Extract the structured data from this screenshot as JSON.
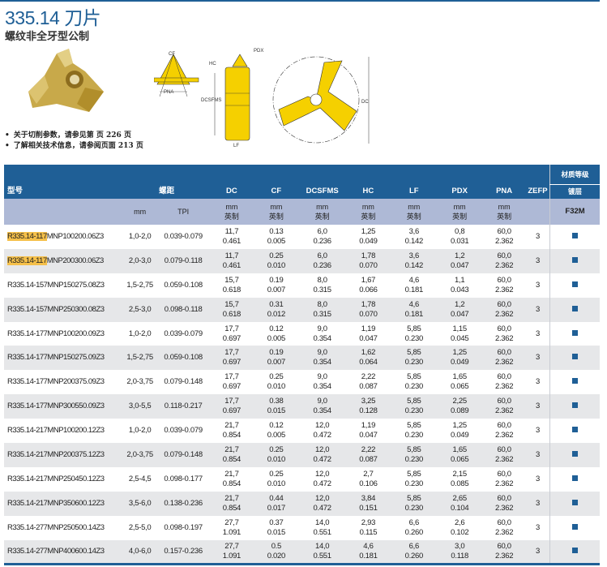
{
  "header": {
    "title": "335.14 刀片",
    "subtitle": "螺纹非全牙型公制",
    "bullets": [
      "关于切削参数，请参见第 页 226 页",
      "了解相关技术信息，请参阅页面 213 页"
    ]
  },
  "diagram_labels": {
    "cf": "CF",
    "pna": "PNA",
    "hc": "HC",
    "pdx": "PDX",
    "dcsfms": "DCSFMS",
    "lf": "LF",
    "dc": "DC"
  },
  "table": {
    "headers": {
      "model": "型号",
      "pitch": "螺距",
      "dc": "DC",
      "cf": "CF",
      "dcsfms": "DCSFMS",
      "hc": "HC",
      "lf": "LF",
      "pdx": "PDX",
      "pna": "PNA",
      "zefp": "ZEFP",
      "grade": "材质等级",
      "coating": "镀层"
    },
    "units": {
      "mm": "mm",
      "tpi": "TPI",
      "metric": "mm",
      "inch": "英制",
      "grade_name": "F32M"
    },
    "highlight_color": "#f5c04a",
    "brand_color": "#1f5f96",
    "rows": [
      [
        "R335.14-117",
        "MNP100200.06Z3",
        "1,0-2,0",
        "0.039-0.079",
        "11,7",
        "0.461",
        "0.13",
        "0.005",
        "6,0",
        "0.236",
        "1,25",
        "0.049",
        "3,6",
        "0.142",
        "0,8",
        "0.031",
        "60,0",
        "2.362",
        "3",
        true
      ],
      [
        "R335.14-117",
        "MNP200300.06Z3",
        "2,0-3,0",
        "0.079-0.118",
        "11,7",
        "0.461",
        "0.25",
        "0.010",
        "6,0",
        "0.236",
        "1,78",
        "0.070",
        "3,6",
        "0.142",
        "1,2",
        "0.047",
        "60,0",
        "2.362",
        "3",
        true
      ],
      [
        "",
        "R335.14-157MNP150275.08Z3",
        "1,5-2,75",
        "0.059-0.108",
        "15,7",
        "0.618",
        "0.19",
        "0.007",
        "8,0",
        "0.315",
        "1,67",
        "0.066",
        "4,6",
        "0.181",
        "1,1",
        "0.043",
        "60,0",
        "2.362",
        "3",
        false
      ],
      [
        "",
        "R335.14-157MNP250300.08Z3",
        "2,5-3,0",
        "0.098-0.118",
        "15,7",
        "0.618",
        "0.31",
        "0.012",
        "8,0",
        "0.315",
        "1,78",
        "0.070",
        "4,6",
        "0.181",
        "1,2",
        "0.047",
        "60,0",
        "2.362",
        "3",
        false
      ],
      [
        "",
        "R335.14-177MNP100200.09Z3",
        "1,0-2,0",
        "0.039-0.079",
        "17,7",
        "0.697",
        "0.12",
        "0.005",
        "9,0",
        "0.354",
        "1,19",
        "0.047",
        "5,85",
        "0.230",
        "1,15",
        "0.045",
        "60,0",
        "2.362",
        "3",
        false
      ],
      [
        "",
        "R335.14-177MNP150275.09Z3",
        "1,5-2,75",
        "0.059-0.108",
        "17,7",
        "0.697",
        "0.19",
        "0.007",
        "9,0",
        "0.354",
        "1,62",
        "0.064",
        "5,85",
        "0.230",
        "1,25",
        "0.049",
        "60,0",
        "2.362",
        "3",
        false
      ],
      [
        "",
        "R335.14-177MNP200375.09Z3",
        "2,0-3,75",
        "0.079-0.148",
        "17,7",
        "0.697",
        "0.25",
        "0.010",
        "9,0",
        "0.354",
        "2,22",
        "0.087",
        "5,85",
        "0.230",
        "1,65",
        "0.065",
        "60,0",
        "2.362",
        "3",
        false
      ],
      [
        "",
        "R335.14-177MNP300550.09Z3",
        "3,0-5,5",
        "0.118-0.217",
        "17,7",
        "0.697",
        "0.38",
        "0.015",
        "9,0",
        "0.354",
        "3,25",
        "0.128",
        "5,85",
        "0.230",
        "2,25",
        "0.089",
        "60,0",
        "2.362",
        "3",
        false
      ],
      [
        "",
        "R335.14-217MNP100200.12Z3",
        "1,0-2,0",
        "0.039-0.079",
        "21,7",
        "0.854",
        "0.12",
        "0.005",
        "12,0",
        "0.472",
        "1,19",
        "0.047",
        "5,85",
        "0.230",
        "1,25",
        "0.049",
        "60,0",
        "2.362",
        "3",
        false
      ],
      [
        "",
        "R335.14-217MNP200375.12Z3",
        "2,0-3,75",
        "0.079-0.148",
        "21,7",
        "0.854",
        "0.25",
        "0.010",
        "12,0",
        "0.472",
        "2,22",
        "0.087",
        "5,85",
        "0.230",
        "1,65",
        "0.065",
        "60,0",
        "2.362",
        "3",
        false
      ],
      [
        "",
        "R335.14-217MNP250450.12Z3",
        "2,5-4,5",
        "0.098-0.177",
        "21,7",
        "0.854",
        "0.25",
        "0.010",
        "12,0",
        "0.472",
        "2,7",
        "0.106",
        "5,85",
        "0.230",
        "2,15",
        "0.085",
        "60,0",
        "2.362",
        "3",
        false
      ],
      [
        "",
        "R335.14-217MNP350600.12Z3",
        "3,5-6,0",
        "0.138-0.236",
        "21,7",
        "0.854",
        "0.44",
        "0.017",
        "12,0",
        "0.472",
        "3,84",
        "0.151",
        "5,85",
        "0.230",
        "2,65",
        "0.104",
        "60,0",
        "2.362",
        "3",
        false
      ],
      [
        "",
        "R335.14-277MNP250500.14Z3",
        "2,5-5,0",
        "0.098-0.197",
        "27,7",
        "1.091",
        "0.37",
        "0.015",
        "14,0",
        "0.551",
        "2,93",
        "0.115",
        "6,6",
        "0.260",
        "2,6",
        "0.102",
        "60,0",
        "2.362",
        "3",
        false
      ],
      [
        "",
        "R335.14-277MNP400600.14Z3",
        "4,0-6,0",
        "0.157-0.236",
        "27,7",
        "1.091",
        "0.5",
        "0.020",
        "14,0",
        "0.551",
        "4,6",
        "0.181",
        "6,6",
        "0.260",
        "3,0",
        "0.118",
        "60,0",
        "2.362",
        "3",
        false
      ]
    ]
  }
}
